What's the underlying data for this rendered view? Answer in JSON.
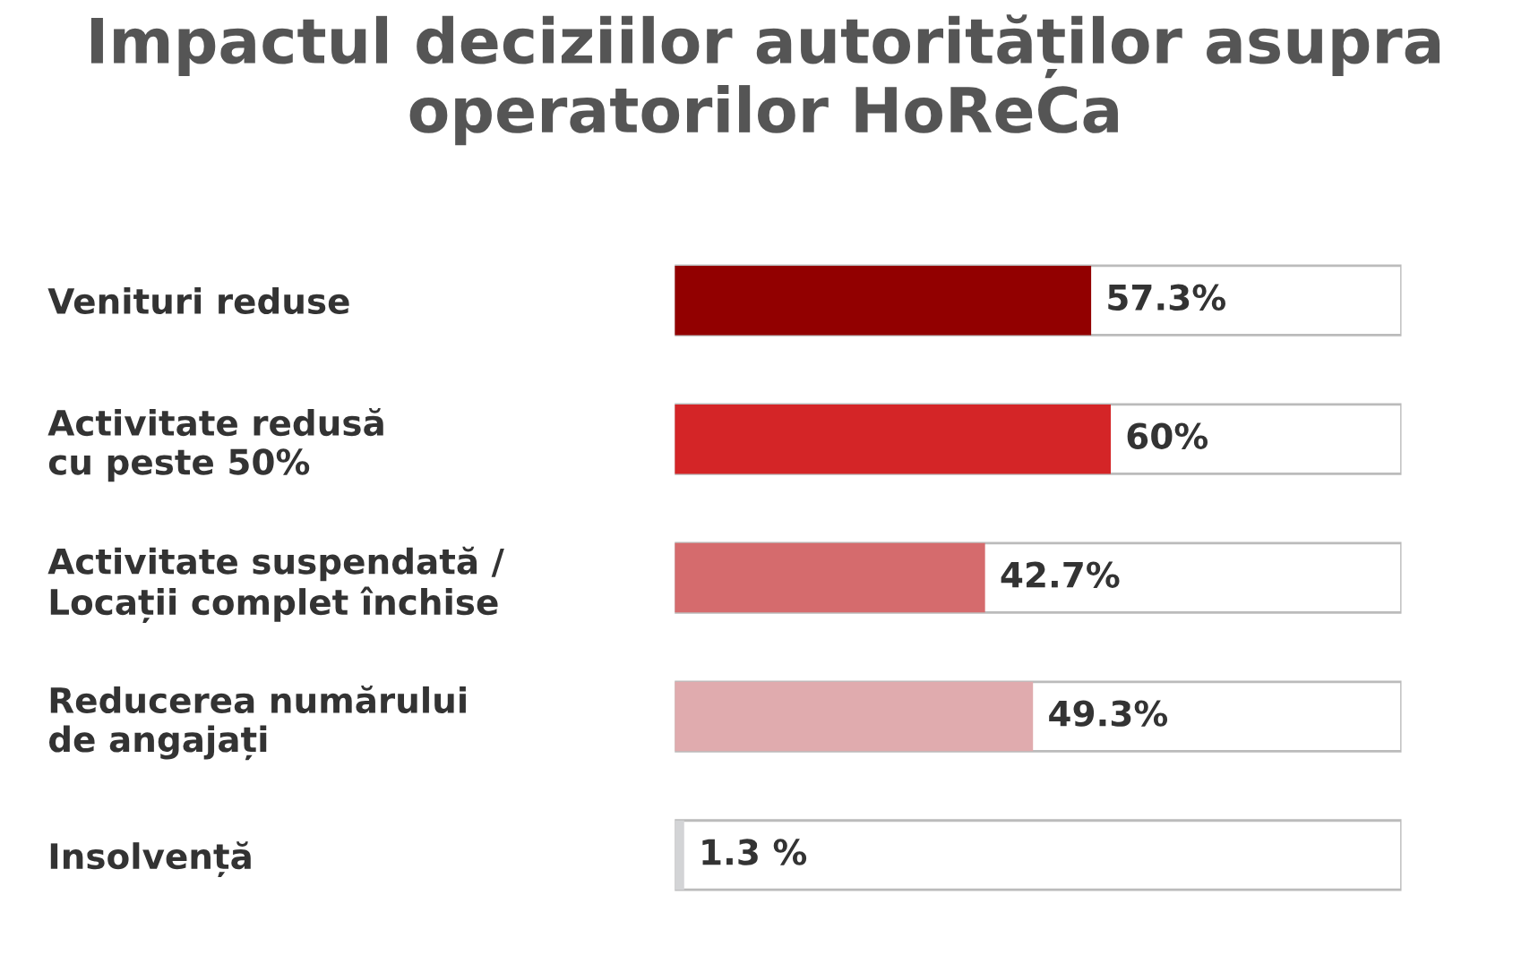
{
  "chart_data": {
    "type": "bar",
    "orientation": "horizontal",
    "title": "Impactul deciziilor autorităților asupra\noperatorilor HoReCa",
    "categories": [
      "Venituri reduse",
      "Activitate redusă\ncu peste 50%",
      "Activitate suspendată /\nLocații complet închise",
      "Reducerea numărului\nde angajați",
      "Insolvență"
    ],
    "series": [
      {
        "colors": [
          "#920000",
          "#d42527",
          "#d56b6d",
          "#e0abae",
          "#d3d4d6"
        ],
        "values": [
          57.3,
          60,
          42.7,
          49.3,
          1.3
        ],
        "value_labels": [
          "57.3%",
          "60%",
          "42.7%",
          "49.3%",
          "1.3 %"
        ]
      }
    ],
    "xlim": [
      0,
      100
    ],
    "grid": false,
    "legend": false
  }
}
